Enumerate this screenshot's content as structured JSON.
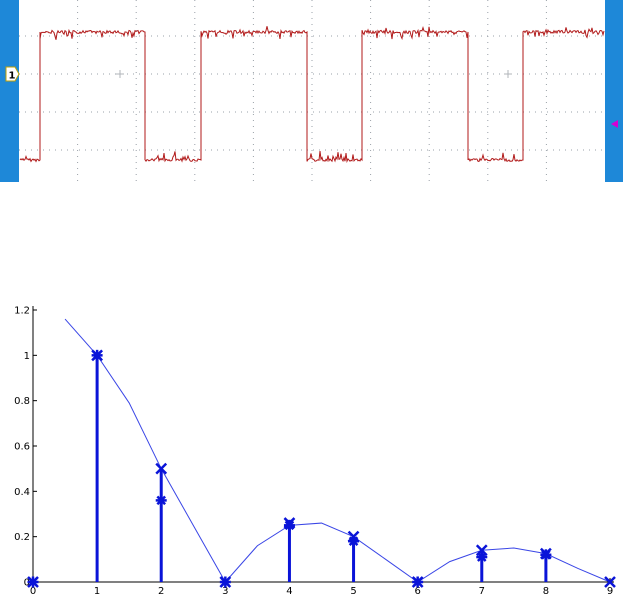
{
  "scope": {
    "channel_marker": "1",
    "colors": {
      "side_bar": "#1e88d8",
      "grid_bg": "#ffffff",
      "grid_dots": "#9aa0a8",
      "trace": "#b11a1a",
      "trigger_marker": "#d400d4"
    },
    "chart_data": {
      "type": "line",
      "description_units": "normalized level (1 = high, 0 = low) vs time fraction of screen",
      "transitions": [
        {
          "t": 0.035,
          "from": 0,
          "to": 1
        },
        {
          "t": 0.215,
          "from": 1,
          "to": 0
        },
        {
          "t": 0.31,
          "from": 0,
          "to": 1
        },
        {
          "t": 0.49,
          "from": 1,
          "to": 0
        },
        {
          "t": 0.585,
          "from": 0,
          "to": 1
        },
        {
          "t": 0.765,
          "from": 1,
          "to": 0
        },
        {
          "t": 0.86,
          "from": 0,
          "to": 1
        }
      ],
      "start_level": 0
    }
  },
  "stem": {
    "colors": {
      "stem": "#0a14d8",
      "line": "#3a46e6",
      "axis": "#000000"
    },
    "chart_data": {
      "type": "scatter",
      "xlim": [
        0,
        9
      ],
      "ylim": [
        0,
        1.2
      ],
      "x_ticks": [
        "0",
        "1",
        "2",
        "3",
        "4",
        "5",
        "6",
        "7",
        "8",
        "9"
      ],
      "y_ticks": [
        "0",
        "0.2",
        "0.4",
        "0.6",
        "0.8",
        "1",
        "1.2"
      ],
      "series": [
        {
          "marker": "star",
          "x": [
            0,
            1,
            2,
            3,
            4,
            5,
            6,
            7,
            8
          ],
          "y": [
            0,
            1.0,
            0.36,
            0,
            0.25,
            0.18,
            0,
            0.11,
            0.12
          ]
        },
        {
          "marker": "x",
          "x": [
            0,
            1,
            2,
            3,
            4,
            5,
            6,
            7,
            8,
            9
          ],
          "y": [
            0,
            1.0,
            0.5,
            0,
            0.26,
            0.2,
            0,
            0.14,
            0.125,
            0
          ]
        },
        {
          "marker": "line",
          "x": [
            0.5,
            1.0,
            1.5,
            2.0,
            2.5,
            3.0,
            3.5,
            4.0,
            4.5,
            5.0,
            5.5,
            6.0,
            6.5,
            7.0,
            7.5,
            8.0,
            8.5,
            9.0
          ],
          "y": [
            1.16,
            1.0,
            0.79,
            0.5,
            0.25,
            0.0,
            0.16,
            0.25,
            0.26,
            0.2,
            0.1,
            0.0,
            0.09,
            0.14,
            0.15,
            0.125,
            0.06,
            0.0
          ]
        }
      ]
    }
  }
}
